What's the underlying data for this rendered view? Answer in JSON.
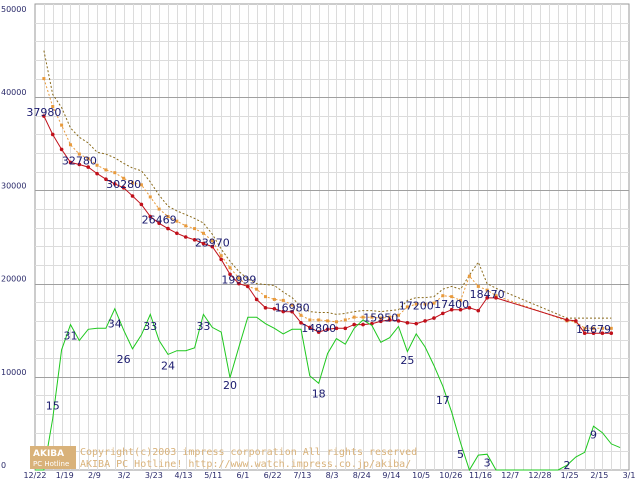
{
  "chart_data": {
    "type": "line",
    "x_labels": [
      "12/22",
      "1/19",
      "2/9",
      "3/2",
      "3/23",
      "4/13",
      "5/11",
      "6/1",
      "6/22",
      "7/13",
      "8/3",
      "8/24",
      "9/14",
      "10/5",
      "10/26",
      "11/16",
      "12/7",
      "12/28",
      "1/25",
      "2/15",
      "3/1"
    ],
    "y_ticks": [
      "0",
      "10000",
      "20000",
      "30000",
      "40000",
      "50000"
    ],
    "ylim": [
      0,
      50000
    ],
    "xlim": [
      0,
      67
    ],
    "series": [
      {
        "name": "price-high-band",
        "color": "#8a6a1a",
        "style": "dotted",
        "points": [
          [
            1,
            45000
          ],
          [
            2,
            40300
          ],
          [
            3,
            38900
          ],
          [
            4,
            36700
          ],
          [
            5,
            35700
          ],
          [
            6,
            35100
          ],
          [
            7,
            34100
          ],
          [
            8,
            33900
          ],
          [
            9,
            33500
          ],
          [
            10,
            32900
          ],
          [
            11,
            32400
          ],
          [
            12,
            32100
          ],
          [
            13,
            30900
          ],
          [
            14,
            29500
          ],
          [
            15,
            28300
          ],
          [
            16,
            27800
          ],
          [
            17,
            27400
          ],
          [
            18,
            27000
          ],
          [
            19,
            26500
          ],
          [
            20,
            25300
          ],
          [
            21,
            23700
          ],
          [
            22,
            22400
          ],
          [
            23,
            21300
          ],
          [
            24,
            20500
          ],
          [
            25,
            20000
          ],
          [
            26,
            19900
          ],
          [
            27,
            19800
          ],
          [
            28,
            19100
          ],
          [
            29,
            18500
          ],
          [
            30,
            17500
          ],
          [
            31,
            17000
          ],
          [
            32,
            16900
          ],
          [
            33,
            16900
          ],
          [
            34,
            16700
          ],
          [
            35,
            16800
          ],
          [
            36,
            17000
          ],
          [
            37,
            17100
          ],
          [
            38,
            17100
          ],
          [
            39,
            17000
          ],
          [
            40,
            17100
          ],
          [
            41,
            17200
          ],
          [
            42,
            18200
          ],
          [
            43,
            18500
          ],
          [
            44,
            18500
          ],
          [
            45,
            18600
          ],
          [
            46,
            19400
          ],
          [
            47,
            19700
          ],
          [
            48,
            19400
          ],
          [
            49,
            20900
          ],
          [
            50,
            22300
          ],
          [
            51,
            20000
          ],
          [
            52,
            19500
          ],
          [
            60,
            16300
          ],
          [
            61,
            16300
          ],
          [
            62,
            16300
          ],
          [
            63,
            16300
          ],
          [
            64,
            16300
          ],
          [
            65,
            16300
          ]
        ]
      },
      {
        "name": "price-average",
        "color": "#e89a3c",
        "style": "dotted",
        "points": [
          [
            1,
            42000
          ],
          [
            2,
            39000
          ],
          [
            3,
            37000
          ],
          [
            4,
            34900
          ],
          [
            5,
            33900
          ],
          [
            6,
            33400
          ],
          [
            7,
            32700
          ],
          [
            8,
            32200
          ],
          [
            9,
            31900
          ],
          [
            10,
            31300
          ],
          [
            11,
            30800
          ],
          [
            12,
            30600
          ],
          [
            13,
            29300
          ],
          [
            14,
            28000
          ],
          [
            15,
            27200
          ],
          [
            16,
            26700
          ],
          [
            17,
            26200
          ],
          [
            18,
            25900
          ],
          [
            19,
            25400
          ],
          [
            20,
            24600
          ],
          [
            21,
            23000
          ],
          [
            22,
            21700
          ],
          [
            23,
            20600
          ],
          [
            24,
            19700
          ],
          [
            25,
            19400
          ],
          [
            26,
            18600
          ],
          [
            27,
            18300
          ],
          [
            28,
            18200
          ],
          [
            29,
            17700
          ],
          [
            30,
            16600
          ],
          [
            31,
            16100
          ],
          [
            32,
            16100
          ],
          [
            33,
            16000
          ],
          [
            34,
            15900
          ],
          [
            35,
            16100
          ],
          [
            36,
            16400
          ],
          [
            37,
            16400
          ],
          [
            38,
            16400
          ],
          [
            39,
            16300
          ],
          [
            40,
            16400
          ],
          [
            41,
            16600
          ],
          [
            42,
            17500
          ],
          [
            43,
            17800
          ],
          [
            44,
            17800
          ],
          [
            45,
            17900
          ],
          [
            46,
            18700
          ],
          [
            47,
            18600
          ],
          [
            48,
            18200
          ],
          [
            49,
            20800
          ],
          [
            50,
            19700
          ],
          [
            51,
            19300
          ],
          [
            52,
            18700
          ],
          [
            60,
            16000
          ],
          [
            61,
            15900
          ],
          [
            62,
            15200
          ],
          [
            63,
            15200
          ],
          [
            64,
            15200
          ],
          [
            65,
            15200
          ]
        ]
      },
      {
        "name": "price-low",
        "color": "#c0101a",
        "style": "solid",
        "points": [
          [
            1,
            37980
          ],
          [
            2,
            36000
          ],
          [
            3,
            34400
          ],
          [
            4,
            33000
          ],
          [
            5,
            32780
          ],
          [
            6,
            32500
          ],
          [
            7,
            31800
          ],
          [
            8,
            31200
          ],
          [
            9,
            30700
          ],
          [
            10,
            30280
          ],
          [
            11,
            29400
          ],
          [
            12,
            28500
          ],
          [
            13,
            27200
          ],
          [
            14,
            26469
          ],
          [
            15,
            25900
          ],
          [
            16,
            25400
          ],
          [
            17,
            25000
          ],
          [
            18,
            24700
          ],
          [
            19,
            24300
          ],
          [
            20,
            23970
          ],
          [
            21,
            22600
          ],
          [
            22,
            21000
          ],
          [
            23,
            19999
          ],
          [
            24,
            19700
          ],
          [
            25,
            18300
          ],
          [
            26,
            17400
          ],
          [
            27,
            17300
          ],
          [
            28,
            17000
          ],
          [
            29,
            16980
          ],
          [
            30,
            15800
          ],
          [
            31,
            15300
          ],
          [
            32,
            14800
          ],
          [
            33,
            15100
          ],
          [
            34,
            15200
          ],
          [
            35,
            15200
          ],
          [
            36,
            15600
          ],
          [
            37,
            15600
          ],
          [
            38,
            15700
          ],
          [
            39,
            15950
          ],
          [
            40,
            16100
          ],
          [
            41,
            16000
          ],
          [
            42,
            15800
          ],
          [
            43,
            15700
          ],
          [
            44,
            16000
          ],
          [
            45,
            16300
          ],
          [
            46,
            16800
          ],
          [
            47,
            17200
          ],
          [
            48,
            17200
          ],
          [
            49,
            17400
          ],
          [
            50,
            17100
          ],
          [
            51,
            18470
          ],
          [
            52,
            18470
          ],
          [
            60,
            16100
          ],
          [
            61,
            16000
          ],
          [
            62,
            14679
          ],
          [
            63,
            14679
          ],
          [
            64,
            14679
          ],
          [
            65,
            14679
          ]
        ]
      },
      {
        "name": "stock-count",
        "color": "#1ec81e",
        "style": "solid",
        "points": [
          [
            0,
            0
          ],
          [
            1,
            0
          ],
          [
            2,
            5500
          ],
          [
            3,
            12900
          ],
          [
            4,
            15600
          ],
          [
            5,
            13900
          ],
          [
            6,
            15100
          ],
          [
            7,
            15200
          ],
          [
            8,
            15200
          ],
          [
            9,
            17300
          ],
          [
            10,
            15000
          ],
          [
            11,
            13000
          ],
          [
            12,
            14500
          ],
          [
            13,
            16700
          ],
          [
            14,
            13900
          ],
          [
            15,
            12400
          ],
          [
            16,
            12800
          ],
          [
            17,
            12800
          ],
          [
            18,
            13100
          ],
          [
            19,
            16700
          ],
          [
            20,
            15300
          ],
          [
            21,
            14800
          ],
          [
            22,
            9900
          ],
          [
            23,
            13200
          ],
          [
            24,
            16400
          ],
          [
            25,
            16400
          ],
          [
            26,
            15700
          ],
          [
            27,
            15200
          ],
          [
            28,
            14600
          ],
          [
            29,
            15100
          ],
          [
            30,
            15100
          ],
          [
            31,
            10100
          ],
          [
            32,
            9300
          ],
          [
            33,
            12500
          ],
          [
            34,
            14100
          ],
          [
            35,
            13500
          ],
          [
            36,
            15200
          ],
          [
            37,
            16100
          ],
          [
            38,
            15500
          ],
          [
            39,
            13700
          ],
          [
            40,
            14200
          ],
          [
            41,
            15400
          ],
          [
            42,
            12700
          ],
          [
            43,
            14600
          ],
          [
            44,
            13200
          ],
          [
            45,
            11200
          ],
          [
            46,
            9000
          ],
          [
            47,
            6200
          ],
          [
            48,
            2900
          ],
          [
            49,
            0
          ],
          [
            50,
            1600
          ],
          [
            51,
            1700
          ],
          [
            52,
            0
          ],
          [
            59,
            0
          ],
          [
            60,
            500
          ],
          [
            61,
            1400
          ],
          [
            62,
            1900
          ],
          [
            63,
            4700
          ],
          [
            64,
            4000
          ],
          [
            65,
            2800
          ],
          [
            66,
            2400
          ]
        ]
      }
    ],
    "annotations": {
      "price": [
        {
          "x": 1,
          "y": 37980,
          "text": "37980"
        },
        {
          "x": 5,
          "y": 32780,
          "text": "32780"
        },
        {
          "x": 10,
          "y": 30280,
          "text": "30280"
        },
        {
          "x": 14,
          "y": 26469,
          "text": "26469"
        },
        {
          "x": 20,
          "y": 23970,
          "text": "23970"
        },
        {
          "x": 23,
          "y": 19999,
          "text": "19999"
        },
        {
          "x": 29,
          "y": 16980,
          "text": "16980"
        },
        {
          "x": 32,
          "y": 14800,
          "text": "14800"
        },
        {
          "x": 39,
          "y": 15950,
          "text": "15950"
        },
        {
          "x": 43,
          "y": 17200,
          "text": "17200"
        },
        {
          "x": 47,
          "y": 17400,
          "text": "17400"
        },
        {
          "x": 51,
          "y": 18470,
          "text": "18470"
        },
        {
          "x": 63,
          "y": 14679,
          "text": "14679"
        }
      ],
      "stock": [
        {
          "x": 2,
          "y": 6500,
          "text": "15"
        },
        {
          "x": 4,
          "y": 14000,
          "text": "31"
        },
        {
          "x": 9,
          "y": 15300,
          "text": "34"
        },
        {
          "x": 10,
          "y": 11500,
          "text": "26"
        },
        {
          "x": 13,
          "y": 15000,
          "text": "33"
        },
        {
          "x": 15,
          "y": 10800,
          "text": "24"
        },
        {
          "x": 19,
          "y": 15000,
          "text": "33"
        },
        {
          "x": 22,
          "y": 8700,
          "text": "20"
        },
        {
          "x": 32,
          "y": 7800,
          "text": "18"
        },
        {
          "x": 42,
          "y": 11400,
          "text": "25"
        },
        {
          "x": 46,
          "y": 7100,
          "text": "17"
        },
        {
          "x": 48,
          "y": 1300,
          "text": "5"
        },
        {
          "x": 51,
          "y": 400,
          "text": "3"
        },
        {
          "x": 60,
          "y": 100,
          "text": "2"
        },
        {
          "x": 63,
          "y": 3400,
          "text": "9"
        }
      ]
    }
  },
  "watermark": {
    "badge_top": "AKIBA",
    "badge_bottom": "PC Hotline",
    "line1": "Copyright(c)2003 impress corporation All rights reserved",
    "line2": "AKIBA PC Hotline!  http://www.watch.impress.co.jp/akiba/"
  }
}
